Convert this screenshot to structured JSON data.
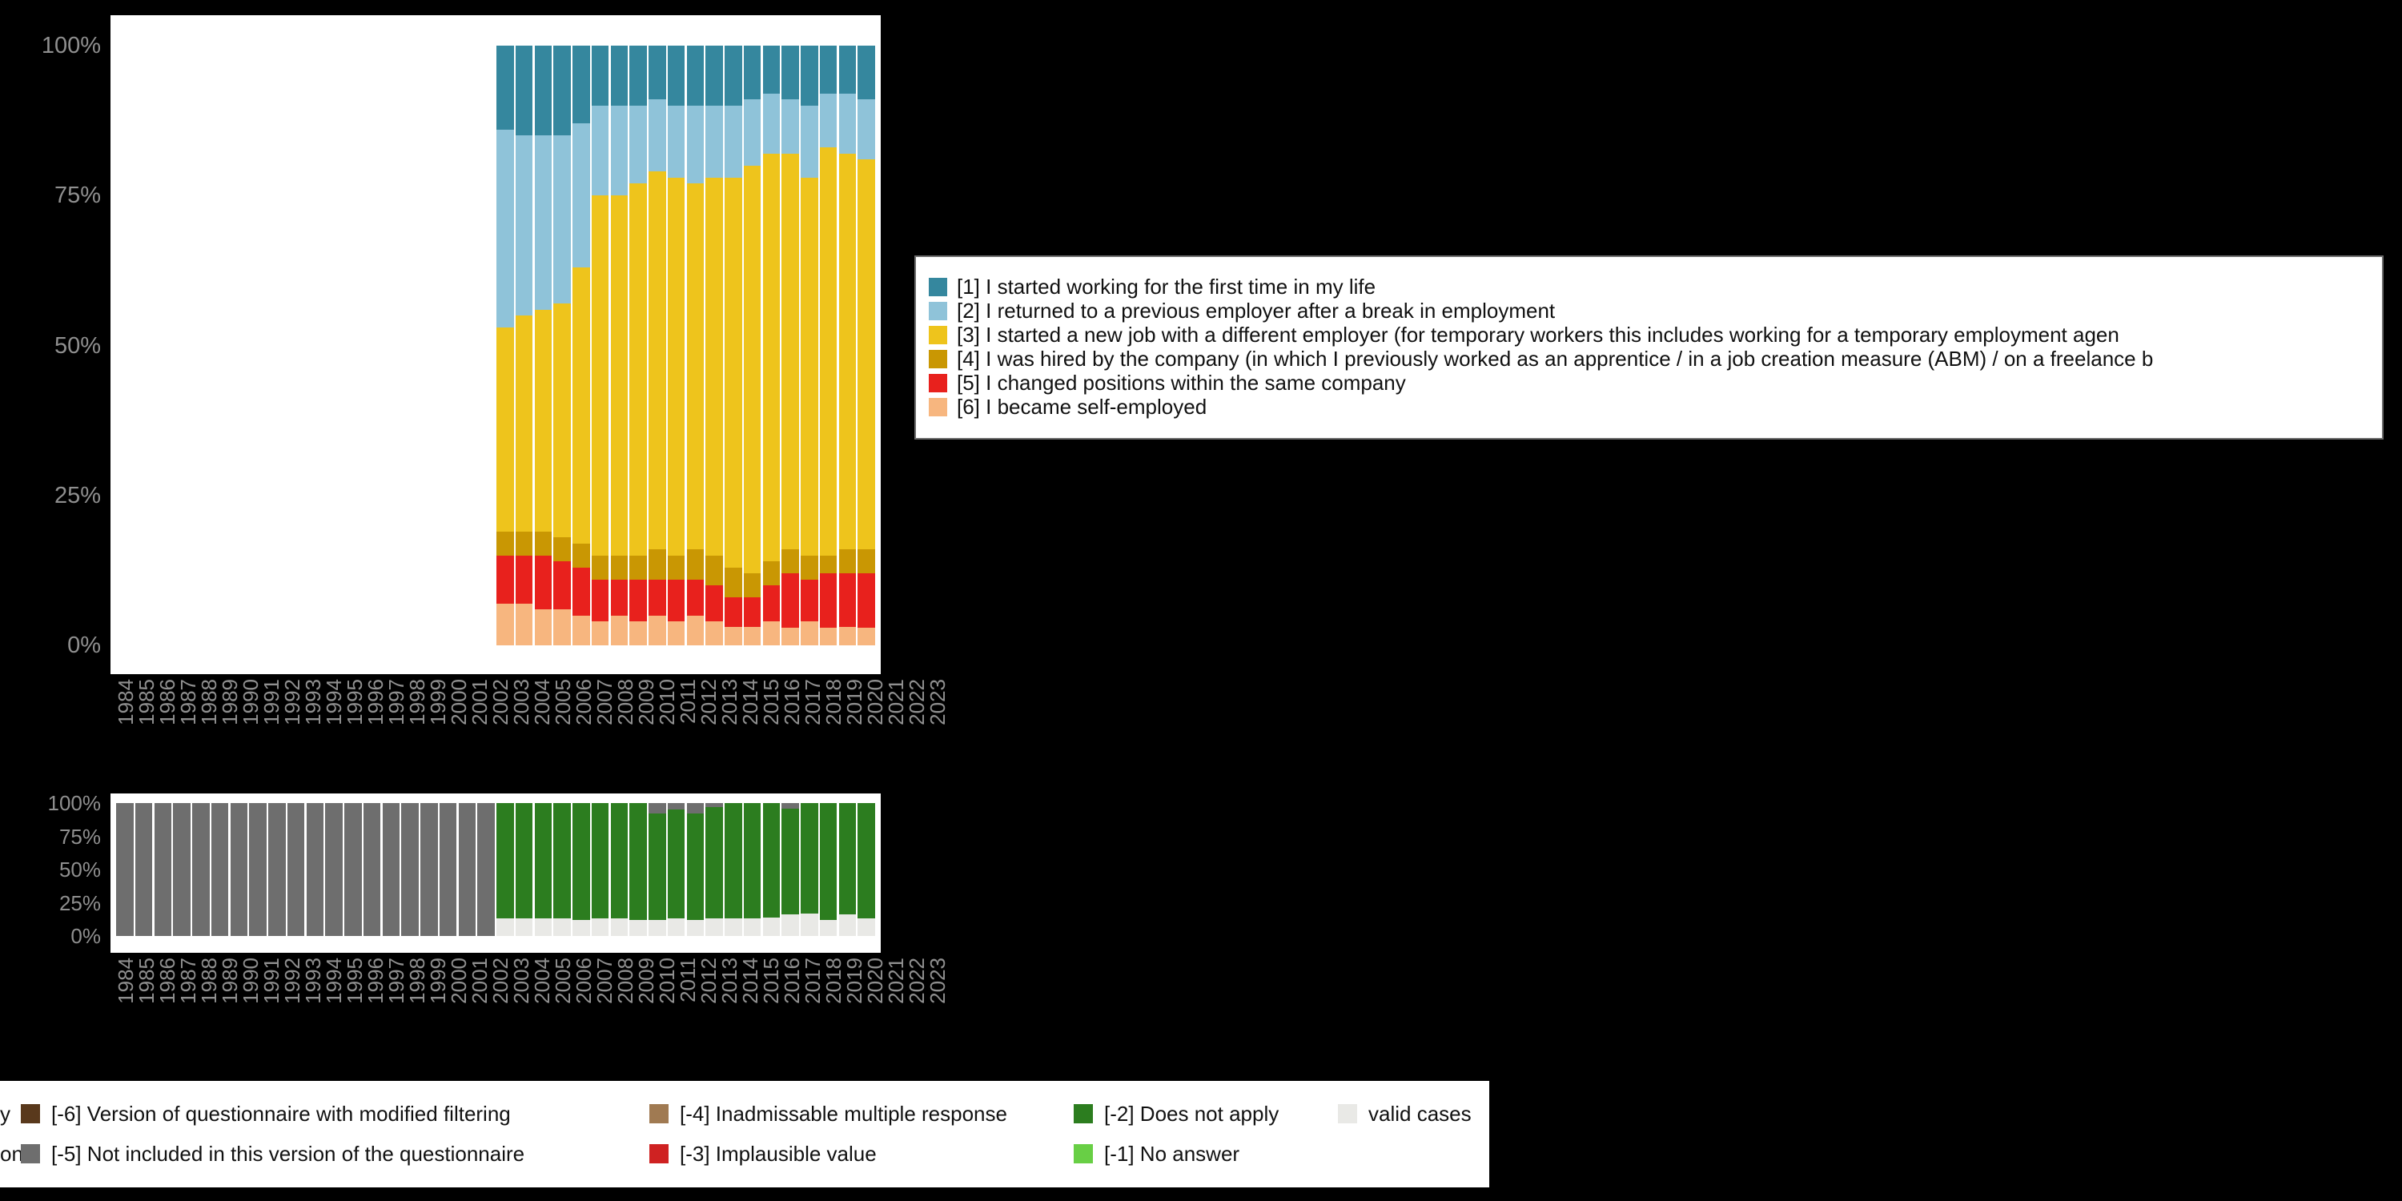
{
  "background": "#000000",
  "axis_label_color": "#8f8f8f",
  "chart_data": [
    {
      "name": "main-percentage-stacked-bars",
      "type": "bar",
      "stacked": true,
      "percent": true,
      "ylim": [
        0,
        100
      ],
      "y_ticks": [
        "100%",
        "75%",
        "50%",
        "25%",
        "0%"
      ],
      "categories": [
        "1984",
        "1985",
        "1986",
        "1987",
        "1988",
        "1989",
        "1990",
        "1991",
        "1992",
        "1993",
        "1994",
        "1995",
        "1996",
        "1997",
        "1998",
        "1999",
        "2000",
        "2001",
        "2002",
        "2003",
        "2004",
        "2005",
        "2006",
        "2007",
        "2008",
        "2009",
        "2010",
        "2011",
        "2012",
        "2013",
        "2014",
        "2015",
        "2016",
        "2017",
        "2018",
        "2019",
        "2020",
        "2021",
        "2022",
        "2023"
      ],
      "series": [
        {
          "label": "[1] I started working for the first time in my life",
          "color": "#35879e",
          "values": [
            0,
            0,
            0,
            0,
            0,
            0,
            0,
            0,
            0,
            0,
            0,
            0,
            0,
            0,
            0,
            0,
            0,
            0,
            0,
            0,
            14,
            15,
            15,
            15,
            13,
            10,
            10,
            10,
            9,
            10,
            10,
            10,
            10,
            9,
            8,
            9,
            10,
            8,
            8,
            9
          ]
        },
        {
          "label": "[2] I returned to a previous employer after a break in employment",
          "color": "#8fc3d9",
          "values": [
            0,
            0,
            0,
            0,
            0,
            0,
            0,
            0,
            0,
            0,
            0,
            0,
            0,
            0,
            0,
            0,
            0,
            0,
            0,
            0,
            33,
            30,
            29,
            28,
            24,
            15,
            15,
            13,
            12,
            12,
            13,
            12,
            12,
            11,
            10,
            9,
            12,
            9,
            10,
            10
          ]
        },
        {
          "label": "[3] I started a new job with a different employer (for temporary workers this includes working for a temporary employment agen",
          "color": "#eec41c",
          "values": [
            0,
            0,
            0,
            0,
            0,
            0,
            0,
            0,
            0,
            0,
            0,
            0,
            0,
            0,
            0,
            0,
            0,
            0,
            0,
            0,
            34,
            36,
            37,
            39,
            46,
            60,
            60,
            62,
            63,
            63,
            61,
            63,
            65,
            68,
            68,
            66,
            63,
            68,
            66,
            65
          ]
        },
        {
          "label": "[4] I was hired by the company (in which I previously worked as an apprentice / in a job creation measure (ABM) / on a freelance b",
          "color": "#c99703",
          "values": [
            0,
            0,
            0,
            0,
            0,
            0,
            0,
            0,
            0,
            0,
            0,
            0,
            0,
            0,
            0,
            0,
            0,
            0,
            0,
            0,
            4,
            4,
            4,
            4,
            4,
            4,
            4,
            4,
            5,
            4,
            5,
            5,
            5,
            4,
            4,
            4,
            4,
            3,
            4,
            4
          ]
        },
        {
          "label": "[5] I changed positions within the same company",
          "color": "#e8211d",
          "values": [
            0,
            0,
            0,
            0,
            0,
            0,
            0,
            0,
            0,
            0,
            0,
            0,
            0,
            0,
            0,
            0,
            0,
            0,
            0,
            0,
            8,
            8,
            9,
            8,
            8,
            7,
            6,
            7,
            6,
            7,
            6,
            6,
            5,
            5,
            6,
            9,
            7,
            9,
            9,
            9
          ]
        },
        {
          "label": "[6] I became self-employed",
          "color": "#f7b67f",
          "values": [
            0,
            0,
            0,
            0,
            0,
            0,
            0,
            0,
            0,
            0,
            0,
            0,
            0,
            0,
            0,
            0,
            0,
            0,
            0,
            0,
            7,
            7,
            6,
            6,
            5,
            4,
            5,
            4,
            5,
            4,
            5,
            4,
            3,
            3,
            4,
            3,
            4,
            3,
            3,
            3
          ]
        }
      ]
    },
    {
      "name": "missing-values-stacked-bars",
      "type": "bar",
      "stacked": true,
      "percent": true,
      "ylim": [
        0,
        100
      ],
      "y_ticks": [
        "100%",
        "75%",
        "50%",
        "25%",
        "0%"
      ],
      "categories": [
        "1984",
        "1985",
        "1986",
        "1987",
        "1988",
        "1989",
        "1990",
        "1991",
        "1992",
        "1993",
        "1994",
        "1995",
        "1996",
        "1997",
        "1998",
        "1999",
        "2000",
        "2001",
        "2002",
        "2003",
        "2004",
        "2005",
        "2006",
        "2007",
        "2008",
        "2009",
        "2010",
        "2011",
        "2012",
        "2013",
        "2014",
        "2015",
        "2016",
        "2017",
        "2018",
        "2019",
        "2020",
        "2021",
        "2022",
        "2023"
      ],
      "series": [
        {
          "label": "[-5] Not included in this version of the questionnaire",
          "color": "#6e6e6e",
          "values": [
            100,
            100,
            100,
            100,
            100,
            100,
            100,
            100,
            100,
            100,
            100,
            100,
            100,
            100,
            100,
            100,
            100,
            100,
            100,
            100,
            0,
            0,
            0,
            0,
            0,
            0,
            0,
            0,
            8,
            5,
            8,
            3,
            0,
            0,
            0,
            4,
            0,
            0,
            0,
            0
          ]
        },
        {
          "label": "[-2] Does not apply",
          "color": "#2c7d1f",
          "values": [
            0,
            0,
            0,
            0,
            0,
            0,
            0,
            0,
            0,
            0,
            0,
            0,
            0,
            0,
            0,
            0,
            0,
            0,
            0,
            0,
            87,
            87,
            87,
            87,
            88,
            87,
            87,
            88,
            80,
            82,
            80,
            84,
            87,
            87,
            86,
            80,
            83,
            88,
            84,
            87
          ]
        },
        {
          "label": "valid cases",
          "color": "#e9e9e6",
          "values": [
            0,
            0,
            0,
            0,
            0,
            0,
            0,
            0,
            0,
            0,
            0,
            0,
            0,
            0,
            0,
            0,
            0,
            0,
            0,
            0,
            13,
            13,
            13,
            13,
            12,
            13,
            13,
            12,
            12,
            13,
            12,
            13,
            13,
            13,
            14,
            16,
            17,
            12,
            16,
            13
          ]
        }
      ]
    }
  ],
  "legends": {
    "main": {
      "items": [
        {
          "label": "[1] I started working for the first time in my life",
          "color": "#35879e"
        },
        {
          "label": "[2] I returned to a previous employer after a break in employment",
          "color": "#8fc3d9"
        },
        {
          "label": "[3] I started a new job with a different employer (for temporary workers this includes working for a temporary employment agen",
          "color": "#eec41c"
        },
        {
          "label": "[4] I was hired by the company (in which I previously worked as an apprentice / in a job creation measure (ABM) / on a freelance b",
          "color": "#c99703"
        },
        {
          "label": "[5] I changed positions within the same company",
          "color": "#e8211d"
        },
        {
          "label": "[6] I became self-employed",
          "color": "#f7b67f"
        }
      ]
    },
    "missing": {
      "rows": [
        {
          "fragment": "y",
          "items": [
            {
              "label": "[-6] Version of questionnaire with modified filtering",
              "color": "#59391c"
            },
            {
              "label": "[-4] Inadmissable multiple response",
              "color": "#a07a52"
            },
            {
              "label": "[-2] Does not apply",
              "color": "#2c7d1f"
            },
            {
              "label": "valid cases",
              "color": "#e9e9e6"
            }
          ]
        },
        {
          "fragment": "on",
          "items": [
            {
              "label": "[-5] Not included in this version of the questionnaire",
              "color": "#6e6e6e"
            },
            {
              "label": "[-3] Implausible value",
              "color": "#cf2222"
            },
            {
              "label": "[-1] No answer",
              "color": "#68cf45"
            }
          ]
        }
      ]
    }
  }
}
